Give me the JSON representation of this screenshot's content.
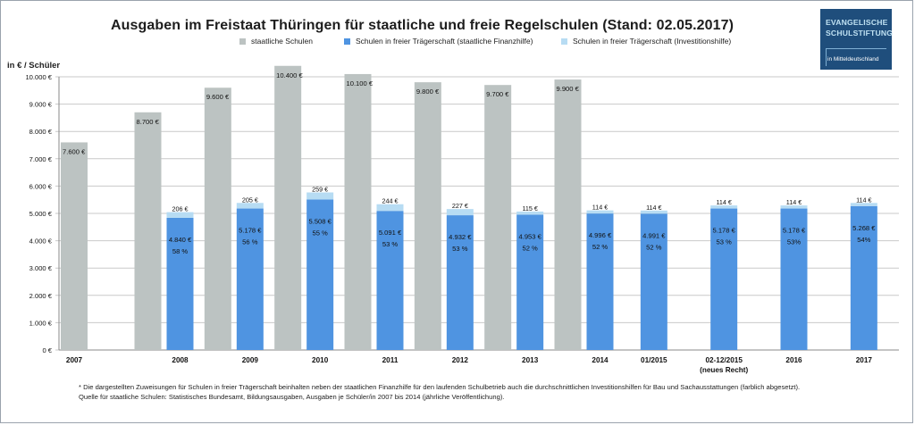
{
  "title": "Ausgaben im Freistaat Thüringen für staatliche und freie Regelschulen (Stand: 02.05.2017)",
  "logo": {
    "line1": "EVANGELISCHE",
    "line2": "SCHULSTIFTUNG",
    "line3": "in Mitteldeutschland"
  },
  "colors": {
    "state": "#bcc3c2",
    "private_fin": "#4f94e1",
    "private_inv": "#b7dcf3",
    "logo_bg": "#1f4e7c"
  },
  "footnote": {
    "line1": "* Die dargestellten Zuweisungen für Schulen in freier Trägerschaft beinhalten neben der staatlichen Finanzhilfe für den laufenden Schulbetrieb auch die durchschnittlichen Investitionshilfen für Bau und Sachausstattungen (farblich abgesetzt).",
    "line2": "Quelle für staatliche Schulen: Statistisches Bundesamt, Bildungsausgaben, Ausgaben je Schüler/in 2007 bis 2014 (jährliche  Veröffentlichung)."
  },
  "chart_data": {
    "type": "bar",
    "title": "Ausgaben im Freistaat Thüringen für staatliche und freie Regelschulen (Stand: 02.05.2017)",
    "ylabel": "in € / Schüler",
    "ylim": [
      0,
      10000
    ],
    "yticks": [
      "0 €",
      "1.000 €",
      "2.000 €",
      "3.000 €",
      "4.000 €",
      "5.000 €",
      "6.000 €",
      "7.000 €",
      "8.000 €",
      "9.000 €",
      "10.000 €"
    ],
    "grid": true,
    "legend_position": "top",
    "categories": [
      "2007",
      "2008",
      "2009",
      "2010",
      "2011",
      "2012",
      "2013",
      "2014",
      "01/2015",
      "02-12/2015",
      "2016",
      "2017"
    ],
    "category_sublabels": [
      "",
      "",
      "",
      "",
      "",
      "",
      "",
      "",
      "",
      "(neues Recht)",
      "",
      ""
    ],
    "series": [
      {
        "name": "staatliche Schulen",
        "values": [
          7600,
          8700,
          9600,
          10400,
          10100,
          9800,
          9700,
          9900,
          null,
          null,
          null,
          null
        ],
        "labels": [
          "7.600 €",
          "8.700 €",
          "9.600 €",
          "10.400 €",
          "10.100 €",
          "9.800 €",
          "9.700 €",
          "9.900 €",
          "",
          "",
          "",
          ""
        ]
      },
      {
        "name": "Schulen in freier Trägerschaft (staatliche Finanzhilfe)",
        "values": [
          null,
          4840,
          5178,
          5508,
          5091,
          4932,
          4953,
          4996,
          4991,
          5178,
          5178,
          5268
        ],
        "labels": [
          "",
          "4.840 €",
          "5.178 €",
          "5.508 €",
          "5.091 €",
          "4.932 €",
          "4.953 €",
          "4.996 €",
          "4.991 €",
          "5.178 €",
          "5.178 €",
          "5.268 €"
        ],
        "percent_labels": [
          "",
          "58 %",
          "56 %",
          "55 %",
          "53 %",
          "53 %",
          "52 %",
          "52 %",
          "52 %",
          "53 %",
          "53%",
          "54%"
        ]
      },
      {
        "name": "Schulen in freier Trägerschaft (Investitionshilfe)",
        "values": [
          null,
          206,
          205,
          259,
          244,
          227,
          115,
          114,
          114,
          114,
          114,
          114
        ],
        "labels": [
          "",
          "206 €",
          "205 €",
          "259 €",
          "244 €",
          "227 €",
          "115 €",
          "114 €",
          "114 €",
          "114 €",
          "114 €",
          "114 €"
        ]
      }
    ]
  }
}
